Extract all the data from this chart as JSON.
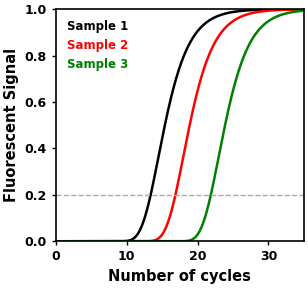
{
  "title": "",
  "xlabel": "Number of cycles",
  "ylabel": "Fluorescent Signal",
  "xlim": [
    0,
    35
  ],
  "ylim": [
    0.0,
    1.0
  ],
  "xticks": [
    0,
    10,
    20,
    30
  ],
  "yticks": [
    0.0,
    0.2,
    0.4,
    0.6,
    0.8,
    1.0
  ],
  "threshold": 0.2,
  "curves": [
    {
      "label": "Sample 1",
      "color": "#000000",
      "midpoint": 14.5,
      "steepness": 0.42,
      "asymmetry": 0.6
    },
    {
      "label": "Sample 2",
      "color": "#ff0000",
      "midpoint": 18.0,
      "steepness": 0.42,
      "asymmetry": 0.6
    },
    {
      "label": "Sample 3",
      "color": "#008000",
      "midpoint": 23.0,
      "steepness": 0.42,
      "asymmetry": 0.6
    }
  ],
  "legend_loc": "upper left",
  "legend_fontsize": 8.5,
  "axis_label_fontsize": 10.5,
  "tick_fontsize": 9,
  "line_width": 1.8,
  "background_color": "#ffffff",
  "threshold_color": "#aaaaaa",
  "threshold_linestyle": "--",
  "threshold_linewidth": 1.0
}
